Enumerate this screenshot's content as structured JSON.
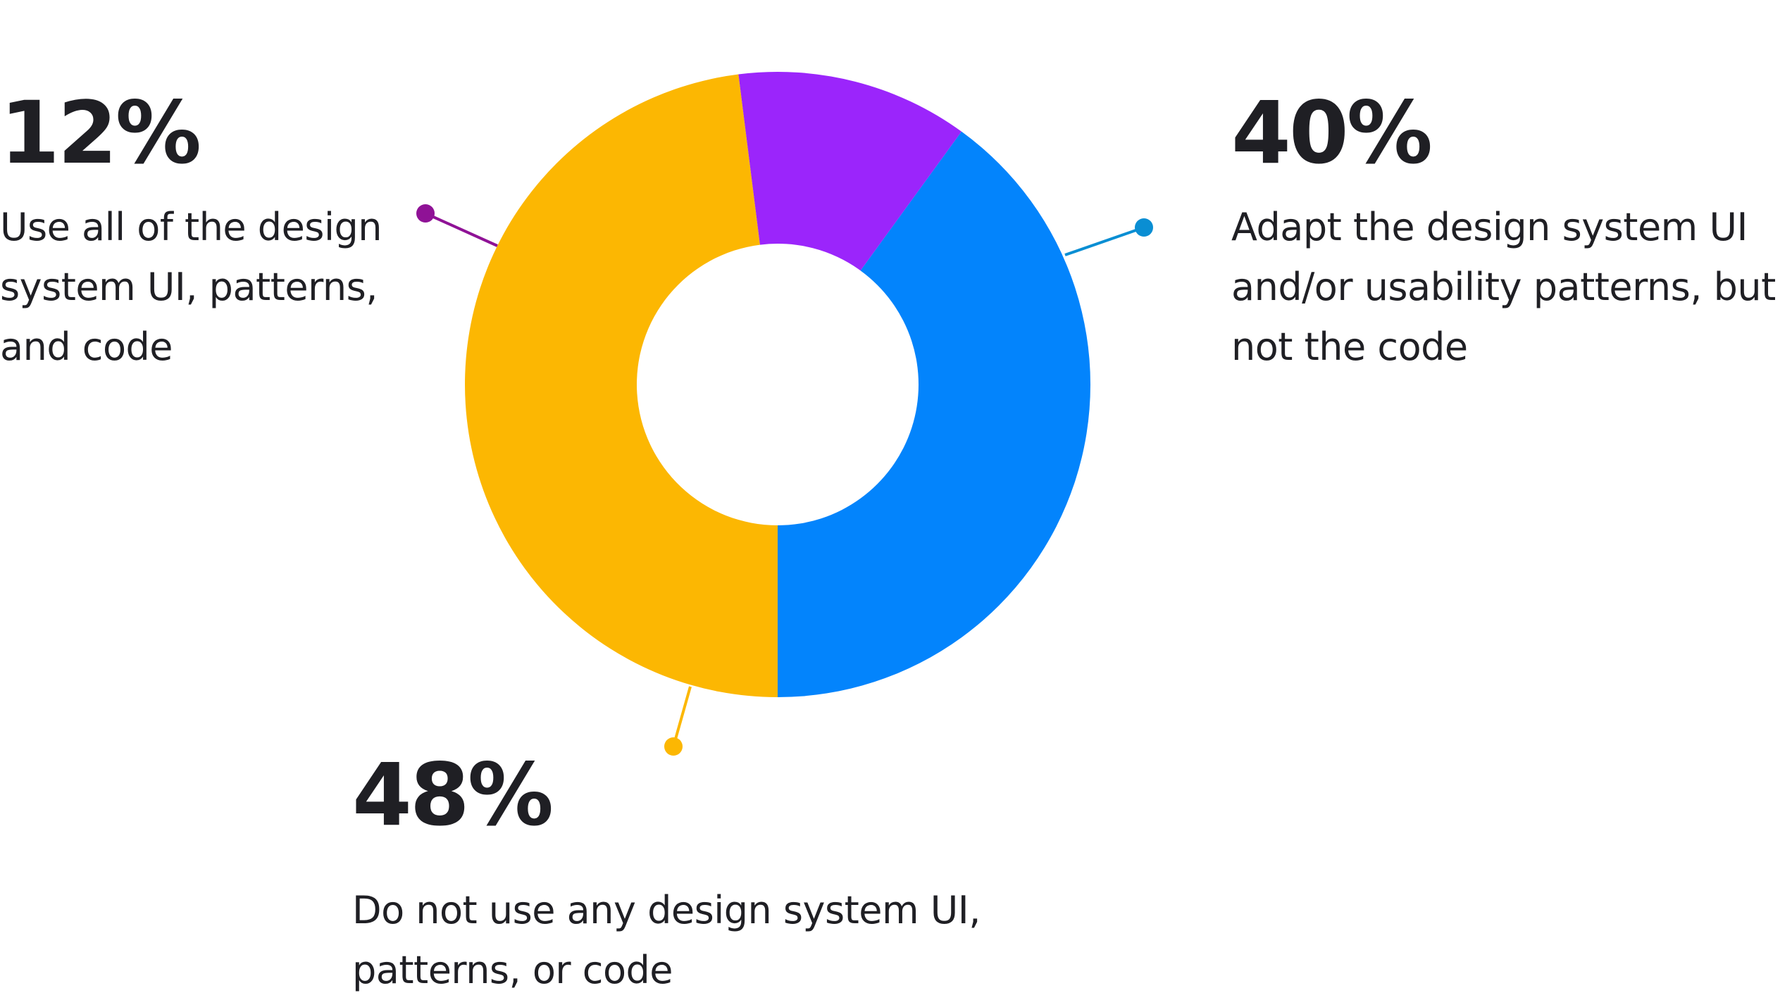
{
  "chart_data": {
    "type": "donut",
    "title": "",
    "colors": {
      "all": "#9b25fb",
      "adapt": "#0384fc",
      "none": "#fcb702",
      "leader_all": "#8f1296",
      "leader_adapt": "#0a8ed3",
      "leader_none": "#fcb702"
    },
    "slices": [
      {
        "key": "adapt",
        "value": 40,
        "label": "40%",
        "description": "Adapt the design system UI and/or usability patterns, but not the code"
      },
      {
        "key": "none",
        "value": 48,
        "label": "48%",
        "description": "Do not use any design system UI, patterns, or code"
      },
      {
        "key": "all",
        "value": 12,
        "label": "12%",
        "description": "Use all of the design system UI, patterns, and code"
      }
    ]
  }
}
